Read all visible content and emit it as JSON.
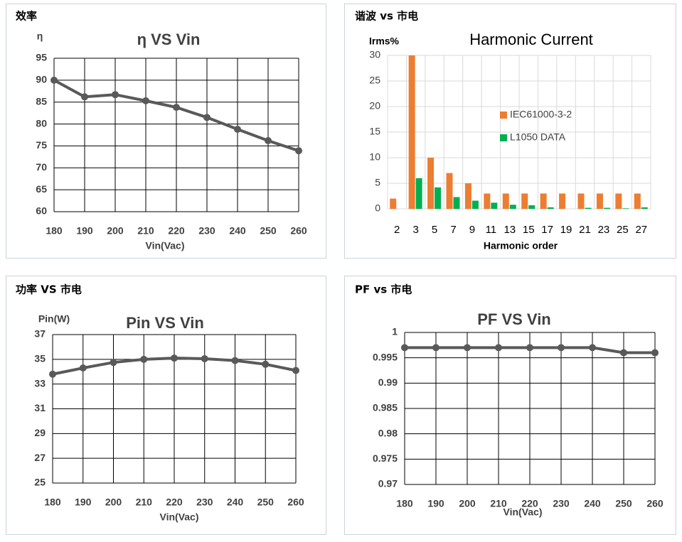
{
  "chart_data": [
    {
      "type": "line",
      "caption": "效率",
      "title": "η  VS Vin",
      "y_label": "η",
      "x_label": "Vin(Vac)",
      "x": [
        180,
        190,
        200,
        210,
        220,
        230,
        240,
        250,
        260
      ],
      "values": [
        90,
        86.2,
        86.7,
        85.3,
        83.8,
        81.5,
        78.8,
        76.2,
        73.9
      ],
      "color": "#595959",
      "xlim": [
        180,
        260
      ],
      "xticks": [
        180,
        190,
        200,
        210,
        220,
        230,
        240,
        250,
        260
      ],
      "ylim": [
        60,
        95
      ],
      "yticks": [
        60,
        65,
        70,
        75,
        80,
        85,
        90,
        95
      ],
      "grid": true
    },
    {
      "type": "bar",
      "caption": "谐波 vs 市电",
      "title": "Harmonic Current",
      "y_label": "Irms%",
      "x_label": "Harmonic order",
      "categories": [
        "2",
        "3",
        "5",
        "7",
        "9",
        "11",
        "13",
        "15",
        "17",
        "19",
        "21",
        "23",
        "25",
        "27"
      ],
      "series": [
        {
          "name": "IEC61000-3-2",
          "color": "#ed7d31",
          "values": [
            2,
            30,
            10,
            7,
            5,
            3,
            3,
            3,
            3,
            3,
            3,
            3,
            3,
            3
          ]
        },
        {
          "name": "L1050 DATA",
          "color": "#00b050",
          "values": [
            0,
            6,
            4.2,
            2.3,
            1.6,
            1.2,
            0.8,
            0.7,
            0.3,
            0,
            0.2,
            0.2,
            0.1,
            0.3
          ]
        }
      ],
      "ylim": [
        0,
        30
      ],
      "yticks": [
        0,
        5,
        10,
        15,
        20,
        25,
        30
      ],
      "grid": true
    },
    {
      "type": "line",
      "caption": "功率 VS 市电",
      "title": "Pin VS Vin",
      "y_label": "Pin(W)",
      "x_label": "Vin(Vac)",
      "x": [
        180,
        190,
        200,
        210,
        220,
        230,
        240,
        250,
        260
      ],
      "values": [
        33.8,
        34.3,
        34.75,
        35.0,
        35.1,
        35.05,
        34.9,
        34.6,
        34.1
      ],
      "color": "#595959",
      "xlim": [
        180,
        260
      ],
      "xticks": [
        180,
        190,
        200,
        210,
        220,
        230,
        240,
        250,
        260
      ],
      "ylim": [
        25,
        37
      ],
      "yticks": [
        25,
        27,
        29,
        31,
        33,
        35,
        37
      ],
      "grid": true
    },
    {
      "type": "line",
      "caption": "PF vs 市电",
      "title": "PF VS Vin",
      "x_label": "Vin(Vac)",
      "x": [
        180,
        190,
        200,
        210,
        220,
        230,
        240,
        250,
        260
      ],
      "values": [
        0.997,
        0.997,
        0.997,
        0.997,
        0.997,
        0.997,
        0.997,
        0.996,
        0.996
      ],
      "color": "#595959",
      "xlim": [
        180,
        260
      ],
      "xticks": [
        180,
        190,
        200,
        210,
        220,
        230,
        240,
        250,
        260
      ],
      "ylim": [
        0.97,
        1
      ],
      "yticks": [
        0.97,
        0.975,
        0.98,
        0.985,
        0.99,
        0.995,
        1
      ],
      "grid": true
    }
  ]
}
